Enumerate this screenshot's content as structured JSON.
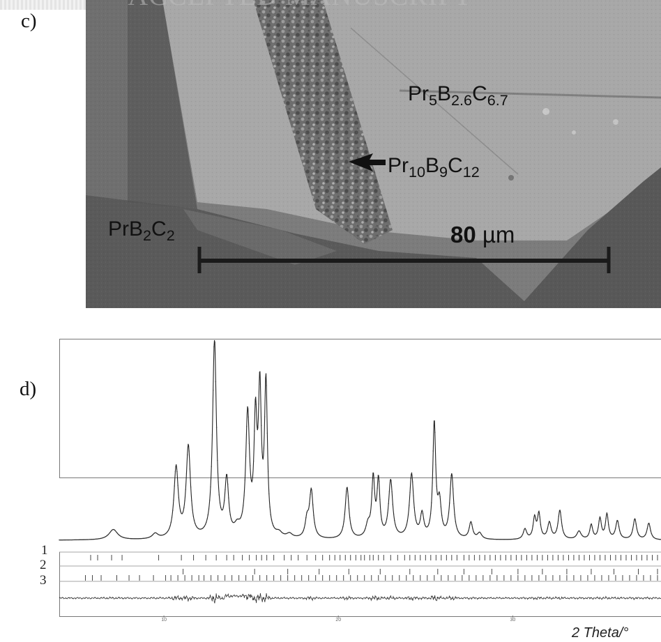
{
  "watermark": "ACCEPTED MANUSCRIPT",
  "panels": {
    "c": {
      "label": "c)"
    },
    "d": {
      "label": "d)"
    }
  },
  "sem": {
    "phases": [
      {
        "base": "Pr",
        "s1": "5",
        "e2": "B",
        "s2": "2.6",
        "e3": "C",
        "s3": "6.7"
      },
      {
        "base": "Pr",
        "s1": "10",
        "e2": "B",
        "s2": "9",
        "e3": "C",
        "s3": "12"
      },
      {
        "base": "PrB",
        "s1": "2",
        "e2": "C",
        "s2": "2",
        "e3": "",
        "s3": ""
      }
    ],
    "scale_bar": {
      "value": "80",
      "unit": "µm"
    }
  },
  "chart_data": {
    "type": "line",
    "title": "",
    "xlabel": "2 Theta/°",
    "ylabel": "",
    "xlim": [
      4,
      38.5
    ],
    "xticks": [
      10,
      20,
      30
    ],
    "baseline": 0.03,
    "peaks": [
      [
        7.1,
        0.05,
        0.3
      ],
      [
        9.5,
        0.025,
        0.2
      ],
      [
        10.7,
        0.34,
        0.15
      ],
      [
        11.4,
        0.44,
        0.15
      ],
      [
        12.9,
        0.96,
        0.13
      ],
      [
        13.6,
        0.27,
        0.13
      ],
      [
        14.2,
        0.04,
        0.2
      ],
      [
        14.8,
        0.59,
        0.13
      ],
      [
        15.25,
        0.53,
        0.1
      ],
      [
        15.5,
        0.67,
        0.1
      ],
      [
        15.85,
        0.73,
        0.1
      ],
      [
        16.6,
        0.02,
        0.2
      ],
      [
        17.2,
        0.02,
        0.2
      ],
      [
        18.2,
        0.08,
        0.12
      ],
      [
        18.45,
        0.23,
        0.13
      ],
      [
        20.5,
        0.25,
        0.13
      ],
      [
        21.7,
        0.06,
        0.15
      ],
      [
        22.0,
        0.28,
        0.1
      ],
      [
        22.3,
        0.27,
        0.1
      ],
      [
        23.0,
        0.28,
        0.14
      ],
      [
        24.2,
        0.31,
        0.14
      ],
      [
        24.8,
        0.11,
        0.12
      ],
      [
        25.5,
        0.55,
        0.1
      ],
      [
        25.8,
        0.16,
        0.12
      ],
      [
        26.5,
        0.31,
        0.13
      ],
      [
        27.6,
        0.08,
        0.12
      ],
      [
        28.1,
        0.03,
        0.15
      ],
      [
        30.7,
        0.05,
        0.12
      ],
      [
        31.25,
        0.1,
        0.1
      ],
      [
        31.5,
        0.12,
        0.1
      ],
      [
        32.1,
        0.08,
        0.12
      ],
      [
        32.7,
        0.14,
        0.12
      ],
      [
        33.8,
        0.04,
        0.15
      ],
      [
        34.5,
        0.07,
        0.1
      ],
      [
        35.0,
        0.1,
        0.1
      ],
      [
        35.4,
        0.12,
        0.1
      ],
      [
        36.0,
        0.09,
        0.12
      ],
      [
        37.0,
        0.1,
        0.12
      ],
      [
        37.8,
        0.08,
        0.12
      ]
    ],
    "reflection_rows": [
      {
        "label": "1",
        "positions": [
          5.8,
          6.2,
          7.0,
          7.6,
          9.7,
          11.0,
          11.7,
          12.4,
          13.0,
          13.6,
          14.0,
          14.5,
          14.9,
          15.3,
          15.6,
          15.9,
          16.3,
          16.9,
          17.3,
          17.7,
          18.2,
          18.7,
          19.1,
          19.5,
          19.8,
          20.1,
          20.4,
          20.7,
          21.0,
          21.3,
          21.5,
          21.8,
          22.0,
          22.3,
          22.6,
          23.0,
          23.4,
          23.8,
          24.1,
          24.4,
          24.7,
          25.0,
          25.3,
          25.6,
          25.9,
          26.2,
          26.5,
          26.8,
          27.2,
          27.5,
          27.8,
          28.1,
          28.4,
          28.7,
          29.0,
          29.3,
          29.6,
          29.9,
          30.2,
          30.5,
          30.8,
          31.1,
          31.4,
          31.7,
          32.0,
          32.3,
          32.6,
          32.9,
          33.2,
          33.5,
          33.8,
          34.1,
          34.4,
          34.7,
          35.0,
          35.3,
          35.6,
          35.9,
          36.2,
          36.5,
          36.8,
          37.1,
          37.4,
          37.7,
          38.0,
          38.3
        ]
      },
      {
        "label": "2",
        "positions": [
          11.1,
          15.2,
          17.1,
          18.9,
          20.6,
          22.4,
          24.1,
          25.7,
          27.2,
          28.8,
          30.3,
          31.7,
          33.1,
          34.5,
          35.8,
          37.2,
          38.3
        ]
      },
      {
        "label": "3",
        "positions": [
          5.5,
          5.9,
          6.4,
          7.3,
          8.0,
          8.6,
          9.4,
          10.1,
          10.4,
          10.8,
          11.2,
          11.6,
          12.0,
          12.3,
          12.7,
          13.1,
          13.5,
          13.9,
          14.3,
          14.7,
          15.1,
          15.5,
          15.9,
          16.3,
          16.7,
          17.1,
          17.5,
          17.9,
          18.3,
          18.7,
          19.1,
          19.5,
          19.9,
          20.3,
          20.7,
          21.1,
          21.5,
          21.9,
          22.3,
          22.7,
          23.1,
          23.5,
          23.9,
          24.3,
          24.7,
          25.1,
          25.5,
          25.9,
          26.3,
          26.7,
          27.1,
          27.5,
          27.9,
          28.3,
          28.7,
          29.1,
          29.5,
          29.9,
          30.3,
          30.7,
          31.1,
          31.5,
          31.9,
          32.3,
          32.7,
          33.1,
          33.5,
          33.9,
          34.3,
          34.7,
          35.1,
          35.5,
          35.9,
          36.3,
          36.7,
          37.1,
          37.5,
          37.9,
          38.3
        ]
      }
    ],
    "grid": false,
    "legend": "none"
  }
}
